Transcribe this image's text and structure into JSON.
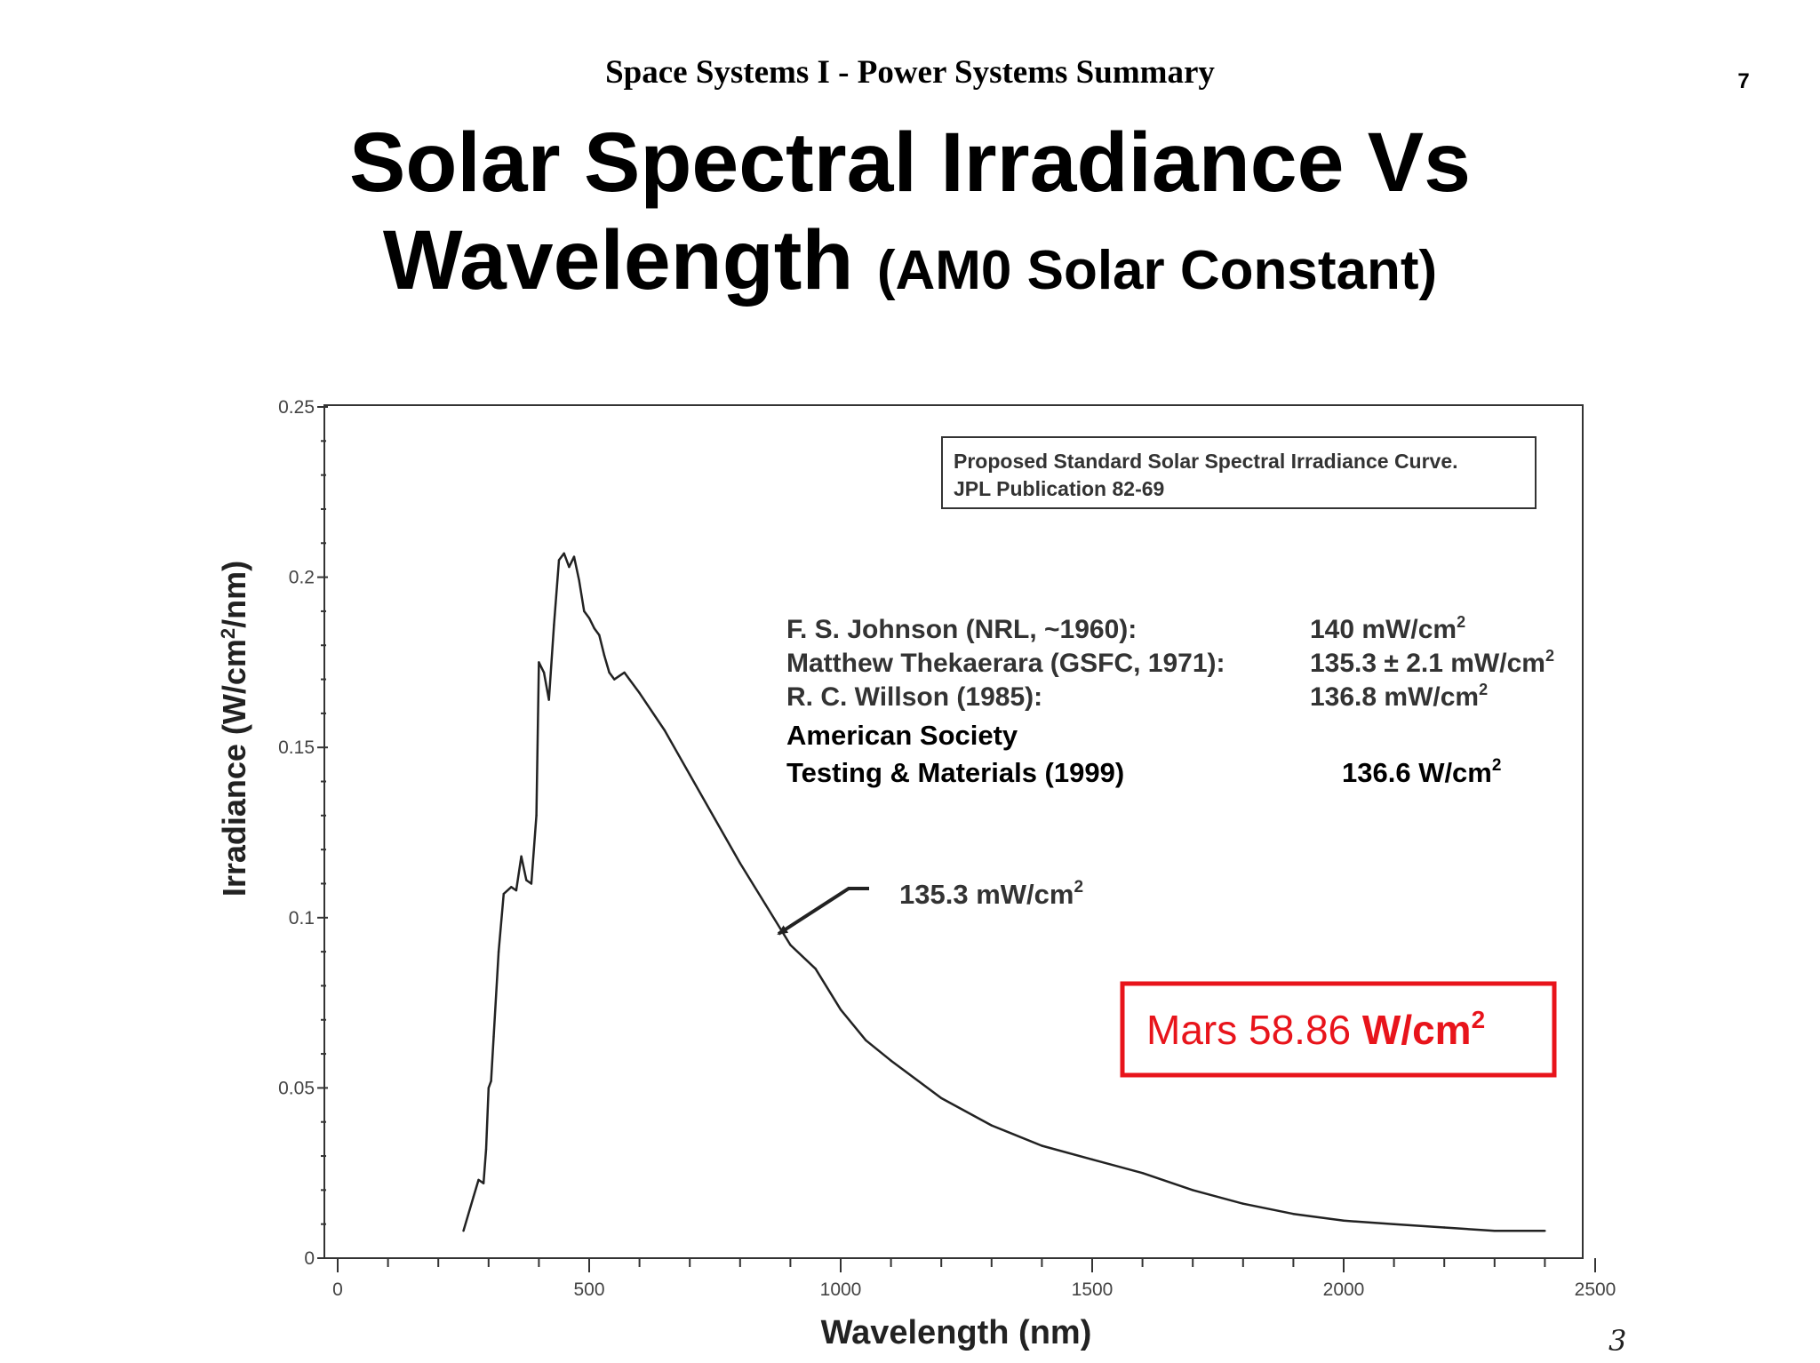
{
  "header": {
    "course_title": "Space Systems I - Power Systems Summary",
    "page_number": "7"
  },
  "slide": {
    "title_line1": "Solar Spectral Irradiance Vs",
    "title_line2_main": "Wavelength",
    "title_line2_sub": "(AM0 Solar Constant)"
  },
  "chart_data": {
    "type": "line",
    "xlabel": "Wavelength (nm)",
    "ylabel_main": "Irradiance (W/cm",
    "ylabel_sup": "2",
    "ylabel_tail": "/nm)",
    "xlim": [
      0,
      2500
    ],
    "ylim": [
      0,
      0.25
    ],
    "x_ticks": [
      0,
      500,
      1000,
      1500,
      2000,
      2500
    ],
    "x_tick_labels": [
      "0",
      "500",
      "1000",
      "1500",
      "2000",
      "2500"
    ],
    "y_ticks": [
      0,
      0.05,
      0.1,
      0.15,
      0.2,
      0.25
    ],
    "y_tick_labels": [
      "0",
      "0.05",
      "0.1",
      "0.15",
      "0.2",
      "0.25"
    ],
    "grid": false,
    "series": [
      {
        "name": "AM0 solar spectral irradiance",
        "x": [
          250,
          270,
          280,
          290,
          295,
          300,
          305,
          310,
          320,
          330,
          345,
          355,
          365,
          375,
          385,
          395,
          400,
          410,
          420,
          430,
          440,
          450,
          460,
          470,
          480,
          490,
          500,
          510,
          520,
          530,
          540,
          550,
          560,
          570,
          580,
          600,
          650,
          700,
          750,
          800,
          850,
          900,
          950,
          1000,
          1050,
          1100,
          1200,
          1300,
          1400,
          1500,
          1600,
          1700,
          1800,
          1900,
          2000,
          2100,
          2200,
          2300,
          2400
        ],
        "y": [
          0.008,
          0.018,
          0.023,
          0.022,
          0.032,
          0.05,
          0.052,
          0.065,
          0.09,
          0.107,
          0.109,
          0.108,
          0.118,
          0.111,
          0.11,
          0.13,
          0.175,
          0.172,
          0.164,
          0.186,
          0.205,
          0.207,
          0.203,
          0.206,
          0.199,
          0.19,
          0.188,
          0.185,
          0.183,
          0.177,
          0.172,
          0.17,
          0.171,
          0.172,
          0.17,
          0.166,
          0.155,
          0.142,
          0.129,
          0.116,
          0.104,
          0.092,
          0.085,
          0.073,
          0.064,
          0.058,
          0.047,
          0.039,
          0.033,
          0.029,
          0.025,
          0.02,
          0.016,
          0.013,
          0.011,
          0.01,
          0.009,
          0.008,
          0.008
        ]
      }
    ],
    "legend_box": {
      "line1": "Proposed Standard Solar Spectral Irradiance Curve.",
      "line2": "JPL Publication 82-69"
    },
    "references": [
      {
        "source": "F. S. Johnson (NRL, ~1960):",
        "value": "140 mW/cm",
        "sup": "2"
      },
      {
        "source": "Matthew Thekaerara (GSFC, 1971):",
        "value": "135.3 ± 2.1 mW/cm",
        "sup": "2"
      },
      {
        "source": "R. C. Willson (1985):",
        "value": "136.8 mW/cm",
        "sup": "2"
      }
    ],
    "astm": {
      "line1": "American Society",
      "line2": "Testing & Materials (1999)",
      "value": "136.6 W/cm",
      "sup": "2"
    },
    "curve_annotation": {
      "text": "135.3 mW/cm",
      "sup": "2",
      "points_to_x": 880
    },
    "mars_callout": {
      "prefix": "Mars 58.86 ",
      "bold": "W/cm",
      "sup": "2",
      "color": "#e8141b"
    },
    "corner_mark": "3"
  }
}
